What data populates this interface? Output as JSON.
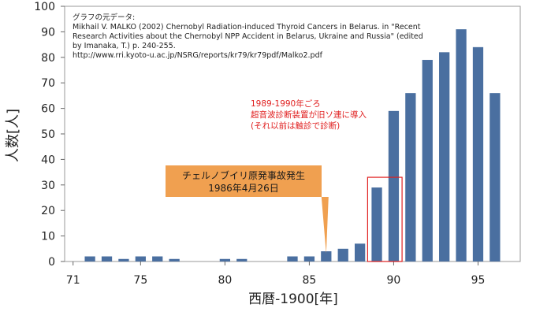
{
  "chart_data": {
    "type": "bar",
    "x": [
      72,
      73,
      74,
      75,
      76,
      77,
      78,
      79,
      80,
      81,
      82,
      83,
      84,
      85,
      86,
      87,
      88,
      89,
      90,
      91,
      92,
      93,
      94,
      95,
      96,
      97
    ],
    "values": [
      2,
      2,
      1,
      2,
      2,
      1,
      0,
      0,
      1,
      1,
      0,
      0,
      2,
      2,
      4,
      5,
      7,
      29,
      59,
      66,
      79,
      82,
      91,
      84,
      66,
      0
    ],
    "xlabel": "西暦-1900[年]",
    "ylabel": "人数[人]",
    "ylim": [
      0,
      100
    ],
    "xlim": [
      70.5,
      97.5
    ],
    "yticks": [
      0,
      10,
      20,
      30,
      40,
      50,
      60,
      70,
      80,
      90,
      100
    ],
    "xticks": [
      71,
      75,
      80,
      85,
      90,
      95
    ],
    "grid": false,
    "bar_color": "#4a6fa0",
    "source_note": [
      "グラフの元データ:",
      "Mikhail V. MALKO (2002) Chernobyl Radiation-induced Thyroid Cancers in Belarus. in \"Recent",
      "Research Activities about the Chernobyl NPP Accident in Belarus, Ukraine and Russia\" (edited",
      "by Imanaka, T.) p. 240-255.",
      "http://www.rri.kyoto-u.ac.jp/NSRG/reports/kr79/kr79pdf/Malko2.pdf"
    ],
    "annotation_red": [
      "1989-1990年ごろ",
      "超音波診断装置が旧ソ連に導入",
      "(それ以前は触診で診断)"
    ],
    "annotation_red_color": "#e02020",
    "highlight_years": [
      89,
      90
    ],
    "callout": [
      "チェルノブイリ原発事故発生",
      "1986年4月26日"
    ],
    "callout_year": 86,
    "callout_color": "#f0a050"
  }
}
